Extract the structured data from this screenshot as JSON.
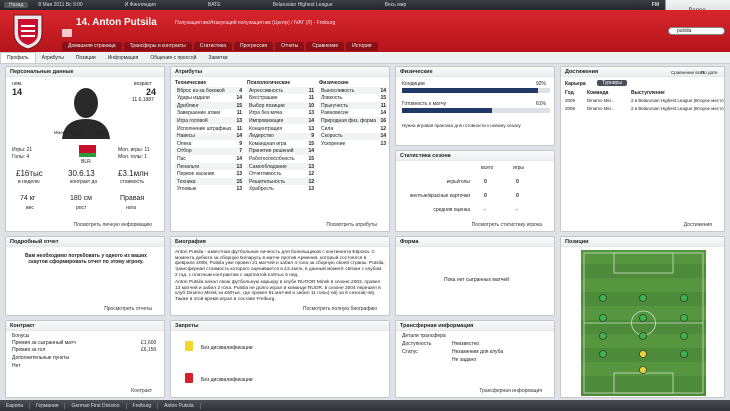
{
  "top_bar": {
    "back": "Назад",
    "date": "8 Мая 2011 Вс 9:00",
    "items": [
      "И Финляндия",
      "BATE",
      "Belarusian Highest League",
      "Весь мир"
    ],
    "logo": "FM",
    "next": "Далее"
  },
  "header": {
    "title": "14. Anton Putsila",
    "subtitle": "Полузащитник/Атакующий полузащитник (Центр) / IVAT (Л) - Freiburg",
    "tabs": [
      "Домашняя страница",
      "Трансферы и контракты",
      "Статистика",
      "Прогрессия",
      "Отчеты",
      "Сравнение",
      "История"
    ],
    "search": "putsila"
  },
  "subnav": [
    "Профиль",
    "Атрибуты",
    "Позиции",
    "Информация",
    "Общение с прессой",
    "Заметки"
  ],
  "personal": {
    "title": "Персональные данные",
    "number_label": "ном.",
    "number": "14",
    "age_label": "возраст",
    "age": "24",
    "dob": "11.6.1987",
    "contract": "Имеет контракт с Freiburg",
    "apps": "Игры: 21",
    "goals": "Голы: 4",
    "youth_apps": "Мол. игры: 11",
    "youth_goals": "Мол. голы: 1",
    "nation": "BLR",
    "wage": "£16тыс",
    "wage_label": "в неделю",
    "expiry": "30.6.13",
    "expiry_label": "контракт до",
    "value": "£3.1млн",
    "value_label": "стоимость",
    "weight": "74 кг",
    "weight_label": "вес",
    "height": "180 см",
    "height_label": "рост",
    "foot": "Правая",
    "foot_label": "нога",
    "link": "Посмотреть личную информацию"
  },
  "attributes": {
    "title": "Атрибуты",
    "groups": [
      {
        "name": "Технические",
        "items": [
          {
            "name": "Вброс из-за боковой",
            "value": "4"
          },
          {
            "name": "Удары издали",
            "value": "14"
          },
          {
            "name": "Дриблинг",
            "value": "15"
          },
          {
            "name": "Завершение атаки",
            "value": "11"
          },
          {
            "name": "Игра головой",
            "value": "13"
          },
          {
            "name": "Исполнение штрафных",
            "value": "11"
          },
          {
            "name": "Навесы",
            "value": "14"
          },
          {
            "name": "Опека",
            "value": "9"
          },
          {
            "name": "Отбор",
            "value": "7"
          },
          {
            "name": "Пас",
            "value": "14"
          },
          {
            "name": "Пенальти",
            "value": "13"
          },
          {
            "name": "Первое касание",
            "value": "13"
          },
          {
            "name": "Техника",
            "value": "15"
          },
          {
            "name": "Угловые",
            "value": "13"
          }
        ]
      },
      {
        "name": "Психологические",
        "items": [
          {
            "name": "Агрессивность",
            "value": "11"
          },
          {
            "name": "Бесстрашие",
            "value": "11"
          },
          {
            "name": "Выбор позиции",
            "value": "10"
          },
          {
            "name": "Игра без мяча",
            "value": "13"
          },
          {
            "name": "Импровизация",
            "value": "14"
          },
          {
            "name": "Концентрация",
            "value": "13"
          },
          {
            "name": "Лидерство",
            "value": "9"
          },
          {
            "name": "Командная игра",
            "value": "15"
          },
          {
            "name": "Принятие решений",
            "value": "14"
          },
          {
            "name": "Работоспособность",
            "value": "15"
          },
          {
            "name": "Самообладание",
            "value": "13"
          },
          {
            "name": "Отчетливость",
            "value": "12"
          },
          {
            "name": "Решительность",
            "value": "12"
          },
          {
            "name": "Храбрость",
            "value": "13"
          }
        ]
      },
      {
        "name": "Физические",
        "items": [
          {
            "name": "Выносливость",
            "value": "14"
          },
          {
            "name": "Ловкость",
            "value": "15"
          },
          {
            "name": "Прыгучесть",
            "value": "11"
          },
          {
            "name": "Равновесие",
            "value": "14"
          },
          {
            "name": "Природная физ. форма",
            "value": "16"
          },
          {
            "name": "Сила",
            "value": "12"
          },
          {
            "name": "Скорость",
            "value": "14"
          },
          {
            "name": "Ускорение",
            "value": "13"
          }
        ]
      }
    ],
    "link": "Посмотреть атрибуты"
  },
  "physical": {
    "title": "Физические",
    "condition": {
      "name": "Кондиции",
      "value": 92,
      "label": "92%"
    },
    "match_fitness": {
      "name": "Готовность к матчу",
      "value": 61,
      "label": "61%"
    },
    "note": "Нужна игровая практика для готовности к новому сезону"
  },
  "season_stats": {
    "title": "Статистика сезона",
    "columns": [
      "всего",
      "игры"
    ],
    "rows": [
      {
        "name": "игры/голы",
        "values": [
          "0",
          "0"
        ]
      },
      {
        "name": "желтые/красные карточки",
        "values": [
          "0",
          "0"
        ]
      },
      {
        "name": "средняя оценка",
        "values": [
          "-",
          "-"
        ]
      }
    ],
    "link": "Посмотреть статистику игрока"
  },
  "achievements": {
    "title": "Достижения",
    "career": "Карьера",
    "button": "Турниры",
    "sort": [
      "Сравнение всех",
      "По дате"
    ],
    "columns": [
      "Год",
      "Команда",
      "Выступление"
    ],
    "rows": [
      [
        "2009",
        "Dinamo Min...",
        "2 в Belarusian Highest League (Второе место)"
      ],
      [
        "2008",
        "Dinamo Min...",
        "2 в Belarusian Highest League (Второе место)"
      ]
    ],
    "link": "Достижения"
  },
  "report": {
    "title": "Подробный отчет",
    "text": "Вам необходимо потребовать у одного из ваших скаутов сформировать отчет по этому игроку.",
    "link": "Просмотреть отчеты"
  },
  "biography": {
    "title": "Биография",
    "paragraphs": [
      "Anton Putsila - известная футбольная личность для болельщиков с континента Европа. С момента дебюта за сборную Беларусь в матче против Армения, который состоялся в феврале 2008, Putsila уже провел 21 матчей и забил 4 гола за сборную своей страны. Putsila, трансферная стоимость которого оценивается в £3.1млн, в данный момент связан с клубом 2 год. с платным контрактом с зарплатой £16тыс в нед.",
      "Anton Putsila начал свою футбольную карьеру в клубе RUOOR Minsk в сезоне 2003, провел 13 матчей и забил 2 гола. Putsila не долго играл в команде RUOR, в сезоне 2004 перешел в клуб Dinamo Minsk за £60тыс, где провел 91 матчей и забил 11 голы(-ов) за 6 сезона(-ов). Также в этой время играл в составе Freiburg."
    ],
    "link": "Посмотреть полную биографию"
  },
  "form": {
    "title": "Форма",
    "text": "Пока нет сыгранных матчей"
  },
  "positions": {
    "title": "Позиции"
  },
  "contract": {
    "title": "Контракт",
    "bonuses": "Бонусы",
    "rows": [
      [
        "Премия за сыгранный матч",
        "£1,600"
      ],
      [
        "Премия за гол",
        "£6,150"
      ]
    ],
    "extra": "Дополнительные пункты",
    "extra_value": "Нет",
    "link": "Контракт"
  },
  "bans": {
    "title": "Запреты",
    "items": [
      "Без дисквалификации",
      "Без дисквалификации"
    ]
  },
  "transfer": {
    "title": "Трансферная информация",
    "details": "Детали трансфера",
    "rows": [
      [
        "Доступность",
        "Неизвестно"
      ],
      [
        "Статус",
        "Незаменим для клуба"
      ],
      [
        "",
        "Не задано"
      ]
    ],
    "link": "Трансферная информация"
  },
  "breadcrumb": [
    "Европа",
    "Германия",
    "German First Division",
    "Freiburg",
    "Anton Putsila"
  ]
}
